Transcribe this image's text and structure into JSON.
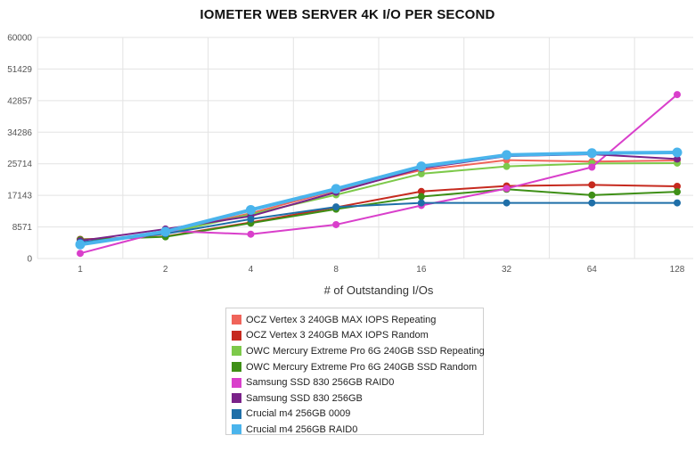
{
  "chart_data": {
    "type": "line",
    "title": "IOMETER WEB SERVER 4K I/O PER SECOND",
    "xlabel": "# of Outstanding I/Os",
    "ylabel": "",
    "categories": [
      "1",
      "2",
      "4",
      "8",
      "16",
      "32",
      "64",
      "128"
    ],
    "yticks": [
      "0",
      "8571",
      "17143",
      "25714",
      "34286",
      "42857",
      "51429",
      "60000"
    ],
    "ylim": [
      0,
      60000
    ],
    "grid": true,
    "legend_position": "bottom",
    "series": [
      {
        "name": "OCZ Vertex 3 240GB MAX IOPS Repeating",
        "color": "#f0645a",
        "values": [
          4300,
          7000,
          12300,
          18500,
          24000,
          26700,
          26300,
          26600
        ]
      },
      {
        "name": "OCZ Vertex 3 240GB MAX IOPS Random",
        "color": "#c62a1f",
        "values": [
          5200,
          6000,
          9800,
          13900,
          18200,
          19700,
          20000,
          19600
        ]
      },
      {
        "name": "OWC Mercury Extreme Pro 6G 240GB SSD Repeating",
        "color": "#7dc94a",
        "values": [
          4000,
          6800,
          12000,
          17300,
          23000,
          25000,
          25800,
          25900
        ]
      },
      {
        "name": "OWC Mercury Extreme Pro 6G 240GB SSD Random",
        "color": "#3e8f16",
        "values": [
          5100,
          5900,
          9600,
          13400,
          16800,
          18800,
          17200,
          18100
        ]
      },
      {
        "name": "Samsung SSD 830 256GB RAID0",
        "color": "#d93fcb",
        "values": [
          1400,
          7500,
          6600,
          9200,
          14400,
          19000,
          24800,
          44500
        ]
      },
      {
        "name": "Samsung SSD 830 256GB",
        "color": "#7a2289",
        "values": [
          4800,
          8000,
          11500,
          18000,
          24500,
          27800,
          28300,
          27000
        ]
      },
      {
        "name": "Crucial m4 256GB 0009",
        "color": "#1f6fa8",
        "values": [
          4400,
          6700,
          10700,
          14000,
          15100,
          15100,
          15100,
          15100
        ]
      },
      {
        "name": "Crucial m4 256GB RAID0",
        "color": "#4ab4ec",
        "values": [
          3800,
          7300,
          13200,
          18900,
          25000,
          28100,
          28600,
          28800
        ]
      }
    ]
  }
}
